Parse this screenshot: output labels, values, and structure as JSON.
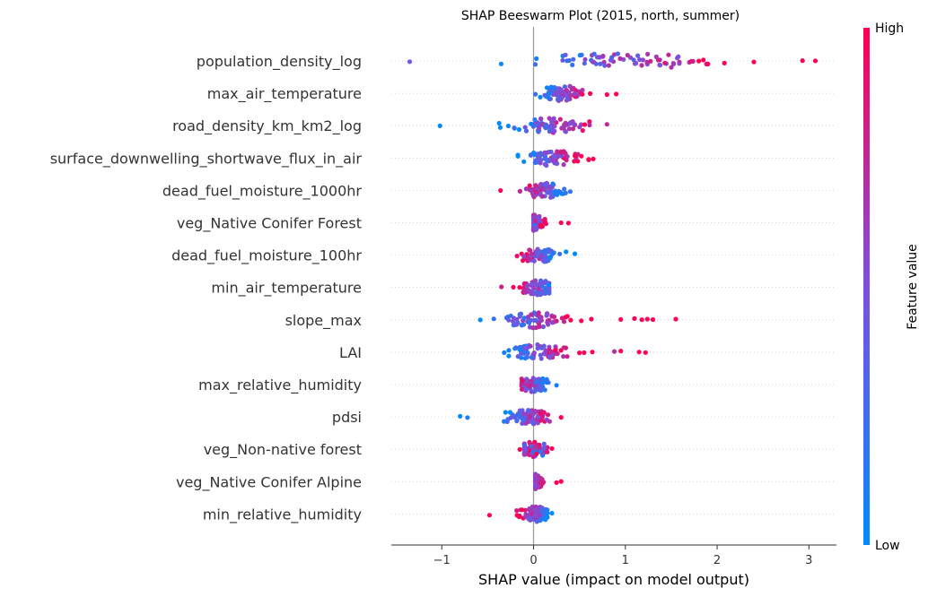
{
  "chart_data": {
    "type": "scatter",
    "subtype": "shap-beeswarm",
    "title": "SHAP Beeswarm Plot (2015, north, summer)",
    "xlabel": "SHAP value (impact on model output)",
    "xlim": [
      -1.55,
      3.3
    ],
    "xticks": [
      -1,
      0,
      1,
      2,
      3
    ],
    "xtick_labels": [
      "−1",
      "0",
      "1",
      "2",
      "3"
    ],
    "zero_line": 0,
    "grid": "horizontal dotted per feature",
    "colorbar": {
      "label": "Feature value",
      "high_label": "High",
      "low_label": "Low",
      "low_color": "#008bfb",
      "high_color": "#ff0052",
      "position": "right"
    },
    "features": [
      {
        "name": "population_density_log",
        "min": -1.35,
        "max": 3.07,
        "center": 0.95,
        "high_side": "right",
        "outliers": [
          [
            -1.35,
            0.45
          ],
          [
            2.4,
            1.0
          ],
          [
            2.93,
            1.0
          ],
          [
            3.07,
            1.0
          ],
          [
            1.85,
            1.0
          ],
          [
            1.8,
            1.0
          ]
        ]
      },
      {
        "name": "max_air_temperature",
        "min": 0.0,
        "max": 0.9,
        "center": 0.32,
        "high_side": "right",
        "outliers": [
          [
            0.9,
            1.0
          ],
          [
            0.8,
            0.95
          ],
          [
            0.02,
            0.2
          ]
        ]
      },
      {
        "name": "road_density_km_km2_log",
        "min": -1.02,
        "max": 0.8,
        "center": 0.2,
        "high_side": "right",
        "outliers": [
          [
            -1.02,
            0.0
          ],
          [
            0.8,
            0.75
          ]
        ]
      },
      {
        "name": "surface_downwelling_shortwave_flux_in_air",
        "min": -0.22,
        "max": 0.65,
        "center": 0.2,
        "high_side": "right",
        "outliers": [
          [
            0.65,
            1.0
          ],
          [
            0.6,
            1.0
          ]
        ]
      },
      {
        "name": "dead_fuel_moisture_1000hr",
        "min": -0.36,
        "max": 0.4,
        "center": 0.12,
        "high_side": "left",
        "outliers": [
          [
            -0.36,
            1.0
          ],
          [
            0.4,
            0.2
          ]
        ]
      },
      {
        "name": "veg_Native Conifer Forest ",
        "min": -0.05,
        "max": 0.38,
        "center": 0.0,
        "high_side": "right",
        "outliers": [
          [
            0.38,
            1.0
          ],
          [
            0.3,
            1.0
          ]
        ]
      },
      {
        "name": "dead_fuel_moisture_100hr",
        "min": -0.18,
        "max": 0.45,
        "center": 0.05,
        "high_side": "left",
        "outliers": [
          [
            0.45,
            0.0
          ],
          [
            -0.18,
            0.9
          ]
        ]
      },
      {
        "name": "min_air_temperature",
        "min": -0.35,
        "max": 0.22,
        "center": 0.05,
        "high_side": "left",
        "outliers": [
          [
            -0.35,
            0.8
          ],
          [
            -0.22,
            0.95
          ]
        ]
      },
      {
        "name": "slope_max",
        "min": -0.58,
        "max": 1.55,
        "center": 0.0,
        "high_side": "right",
        "outliers": [
          [
            -0.58,
            0.0
          ],
          [
            1.55,
            1.0
          ],
          [
            1.3,
            1.0
          ],
          [
            1.24,
            1.0
          ],
          [
            1.18,
            1.0
          ],
          [
            1.1,
            1.0
          ],
          [
            0.95,
            1.0
          ],
          [
            0.63,
            1.0
          ],
          [
            0.52,
            1.0
          ]
        ]
      },
      {
        "name": "LAI",
        "min": -0.32,
        "max": 1.22,
        "center": 0.05,
        "high_side": "right",
        "outliers": [
          [
            -0.32,
            0.1
          ],
          [
            1.22,
            1.0
          ],
          [
            1.15,
            1.0
          ],
          [
            0.95,
            1.0
          ],
          [
            0.88,
            0.7
          ],
          [
            0.64,
            1.0
          ],
          [
            0.55,
            1.0
          ],
          [
            0.5,
            1.0
          ]
        ]
      },
      {
        "name": "max_relative_humidity",
        "min": -0.18,
        "max": 0.25,
        "center": 0.0,
        "high_side": "left",
        "outliers": [
          [
            0.25,
            0.1
          ]
        ]
      },
      {
        "name": "pdsi",
        "min": -0.8,
        "max": 0.3,
        "center": -0.05,
        "high_side": "right",
        "outliers": [
          [
            -0.8,
            0.0
          ],
          [
            -0.72,
            0.1
          ],
          [
            0.3,
            1.0
          ]
        ]
      },
      {
        "name": "veg_Non-native forest ",
        "min": -0.15,
        "max": 0.2,
        "center": 0.0,
        "high_side": "mixed",
        "outliers": [
          [
            -0.15,
            1.0
          ],
          [
            0.2,
            1.0
          ]
        ]
      },
      {
        "name": "veg_Native Conifer Alpine ",
        "min": -0.03,
        "max": 0.3,
        "center": 0.0,
        "high_side": "right",
        "outliers": [
          [
            0.3,
            1.0
          ],
          [
            0.25,
            1.0
          ]
        ]
      },
      {
        "name": "min_relative_humidity",
        "min": -0.48,
        "max": 0.2,
        "center": 0.02,
        "high_side": "left",
        "outliers": [
          [
            -0.48,
            1.0
          ],
          [
            0.2,
            0.0
          ]
        ]
      }
    ]
  }
}
